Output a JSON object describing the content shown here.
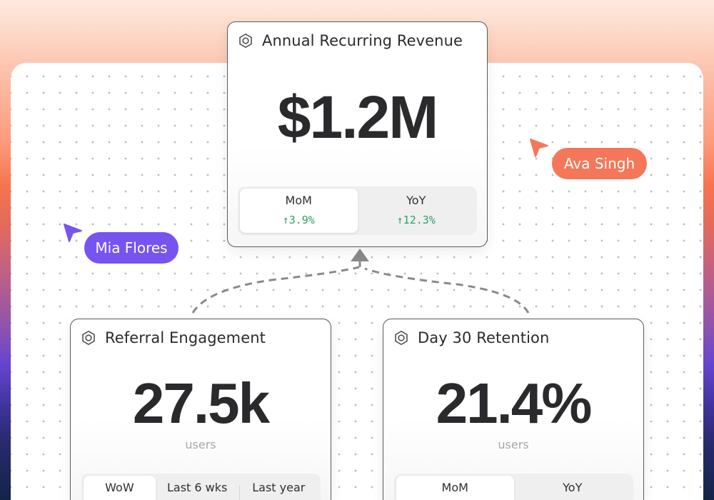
{
  "canvas": {
    "collaborators": [
      {
        "name": "Ava Singh",
        "color": "#f4775a"
      },
      {
        "name": "Mia Flores",
        "color": "#7654f0"
      }
    ]
  },
  "cards": {
    "arr": {
      "icon": "hexagon-nut-icon",
      "title": "Annual Recurring Revenue",
      "value": "$1.2M",
      "comparisons": [
        {
          "label": "MoM",
          "value": "↑3.9%",
          "active": true
        },
        {
          "label": "YoY",
          "value": "↑12.3%",
          "active": false
        }
      ]
    },
    "referral": {
      "icon": "hexagon-nut-icon",
      "title": "Referral Engagement",
      "value": "27.5k",
      "unit": "users",
      "tabs": [
        {
          "label": "WoW",
          "active": true
        },
        {
          "label": "Last 6 wks",
          "active": false
        },
        {
          "label": "Last year",
          "active": false
        }
      ]
    },
    "retention": {
      "icon": "hexagon-nut-icon",
      "title": "Day 30 Retention",
      "value": "21.4%",
      "unit": "users",
      "tabs": [
        {
          "label": "MoM",
          "active": true
        },
        {
          "label": "YoY",
          "active": false
        }
      ]
    }
  },
  "colors": {
    "positive": "#2e9e6a",
    "card_border": "#5a5a5a",
    "text": "#2a2a2d"
  }
}
